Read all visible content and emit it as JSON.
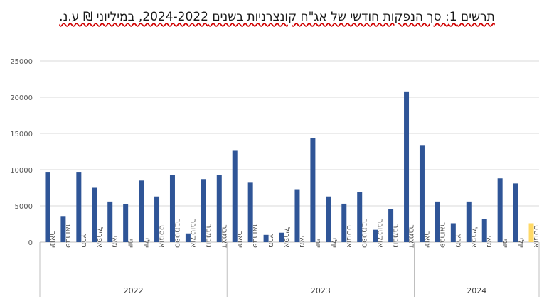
{
  "chart_data": {
    "type": "bar",
    "title": "תרשים 1: סך הנפקות חודשי של אג\"ח קונצרניות בשנים 2024-2022, במיליוני ₪ ע.נ.",
    "xlabel": "",
    "ylabel": "",
    "ylim": [
      0,
      25000
    ],
    "yticks": [
      0,
      5000,
      10000,
      15000,
      20000,
      25000
    ],
    "grid": true,
    "legend": "none",
    "groups": [
      {
        "year": "2022",
        "categories": [
          "ינואר",
          "פברואר",
          "מרץ",
          "אפריל",
          "מאי",
          "יוני",
          "יולי",
          "אוגוסט",
          "ספטמבר",
          "אוקטובר",
          "נובמבר",
          "דצמבר"
        ],
        "values": [
          9700,
          3600,
          9700,
          7500,
          5600,
          5200,
          8500,
          6300,
          9300,
          1200,
          8700,
          9300
        ]
      },
      {
        "year": "2023",
        "categories": [
          "ינואר",
          "פברואר",
          "מרץ",
          "אפריל",
          "מאי",
          "יוני",
          "יולי",
          "אוגוסט",
          "ספטמבר",
          "אוקטובר",
          "נובמבר",
          "דצמבר"
        ],
        "values": [
          12700,
          8200,
          1000,
          1300,
          7300,
          14400,
          6300,
          5300,
          6900,
          1700,
          4600,
          20800
        ]
      },
      {
        "year": "2024",
        "categories": [
          "ינואר",
          "פברואר",
          "מרץ",
          "אפריל",
          "מאי",
          "יוני",
          "יולי",
          "אוגוסט"
        ],
        "values": [
          13400,
          5600,
          2600,
          5600,
          3200,
          8800,
          8100,
          2600
        ]
      }
    ],
    "colors": {
      "bar": "#2f5597",
      "highlight": "#ffd966",
      "grid": "#d9d9d9",
      "axis": "#bfbfbf"
    },
    "highlight_last": true
  }
}
